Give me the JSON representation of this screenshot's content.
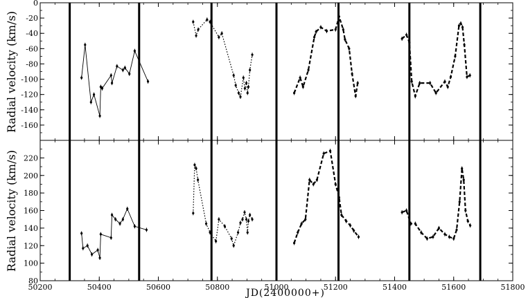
{
  "chart_data": [
    {
      "type": "line",
      "title": "",
      "ylabel": "Radial velocity (km/s)",
      "xlabel": "",
      "xlim": [
        50200,
        51800
      ],
      "ylim": [
        -180,
        0
      ],
      "yticks": [
        0,
        -20,
        -40,
        -60,
        -80,
        -100,
        -120,
        -140,
        -160
      ],
      "vlines": [
        50300,
        50535,
        50780,
        51000,
        51210,
        51450,
        51690
      ],
      "series": [
        {
          "style": "solid",
          "x": [
            50340,
            50352,
            50372,
            50382,
            50402,
            50405,
            50410,
            50440,
            50443,
            50460,
            50480,
            50487,
            50502,
            50520,
            50565
          ],
          "y": [
            -98,
            -55,
            -130,
            -120,
            -148,
            -110,
            -112,
            -95,
            -105,
            -83,
            -88,
            -85,
            -93,
            -63,
            -103
          ]
        },
        {
          "style": "dotted",
          "x": [
            50718,
            50728,
            50735,
            50765,
            50775,
            50805,
            50815,
            50855,
            50862,
            50872,
            50878,
            50888,
            50893,
            50898,
            50902,
            50905,
            50910,
            50918
          ],
          "y": [
            -25,
            -43,
            -35,
            -22,
            -25,
            -45,
            -40,
            -95,
            -108,
            -118,
            -123,
            -98,
            -112,
            -105,
            -118,
            -110,
            -88,
            -68
          ]
        },
        {
          "style": "dashed",
          "x": [
            51060,
            51080,
            51090,
            51108,
            51128,
            51134,
            51150,
            51170,
            51200,
            51212,
            51226,
            51232,
            51246,
            51256,
            51268,
            51275
          ],
          "y": [
            -118,
            -98,
            -110,
            -88,
            -45,
            -38,
            -32,
            -37,
            -35,
            -18,
            -35,
            -48,
            -60,
            -93,
            -122,
            -105
          ]
        },
        {
          "style": "dashed",
          "x": [
            51425,
            51440,
            51450,
            51458,
            51470,
            51485,
            51520,
            51540,
            51570,
            51580,
            51590,
            51605,
            51618,
            51624,
            51630,
            51636,
            51645,
            51655
          ],
          "y": [
            -47,
            -42,
            -52,
            -103,
            -122,
            -105,
            -105,
            -118,
            -103,
            -110,
            -97,
            -70,
            -30,
            -27,
            -32,
            -55,
            -97,
            -95
          ]
        }
      ]
    },
    {
      "type": "line",
      "title": "",
      "ylabel": "Radial velocity (km/s)",
      "xlabel": "JD(2400000+)",
      "xlim": [
        50200,
        51800
      ],
      "ylim": [
        80,
        240
      ],
      "xticks": [
        50200,
        50400,
        50600,
        50800,
        51000,
        51200,
        51400,
        51600,
        51800
      ],
      "yticks": [
        80,
        100,
        120,
        140,
        160,
        180,
        200,
        220
      ],
      "vlines": [
        50300,
        50535,
        50780,
        51000,
        51210,
        51450,
        51690
      ],
      "series": [
        {
          "style": "solid",
          "x": [
            50340,
            50345,
            50360,
            50375,
            50395,
            50402,
            50405,
            50440,
            50443,
            50455,
            50470,
            50480,
            50495,
            50520,
            50560
          ],
          "y": [
            134,
            117,
            120,
            110,
            115,
            106,
            133,
            129,
            155,
            150,
            145,
            150,
            162,
            142,
            138
          ]
        },
        {
          "style": "dotted",
          "x": [
            50718,
            50723,
            50728,
            50734,
            50762,
            50775,
            50795,
            50805,
            50825,
            50848,
            50855,
            50870,
            50878,
            50885,
            50892,
            50898,
            50902,
            50905,
            50910,
            50918
          ],
          "y": [
            157,
            212,
            208,
            195,
            145,
            135,
            125,
            150,
            142,
            128,
            120,
            135,
            146,
            150,
            158,
            150,
            135,
            148,
            155,
            150
          ]
        },
        {
          "style": "dashed",
          "x": [
            51060,
            51072,
            51085,
            51098,
            51112,
            51125,
            51137,
            51160,
            51182,
            51200,
            51212,
            51220,
            51236,
            51250,
            51262,
            51278
          ],
          "y": [
            123,
            135,
            145,
            150,
            195,
            190,
            195,
            225,
            228,
            190,
            175,
            155,
            148,
            143,
            137,
            130
          ]
        },
        {
          "style": "dashed",
          "x": [
            51425,
            51440,
            51455,
            51470,
            51490,
            51510,
            51530,
            51550,
            51570,
            51585,
            51600,
            51610,
            51620,
            51628,
            51634,
            51640,
            51648,
            51656
          ],
          "y": [
            158,
            160,
            145,
            145,
            135,
            128,
            130,
            140,
            133,
            130,
            128,
            138,
            170,
            208,
            195,
            160,
            148,
            143
          ]
        }
      ]
    }
  ]
}
